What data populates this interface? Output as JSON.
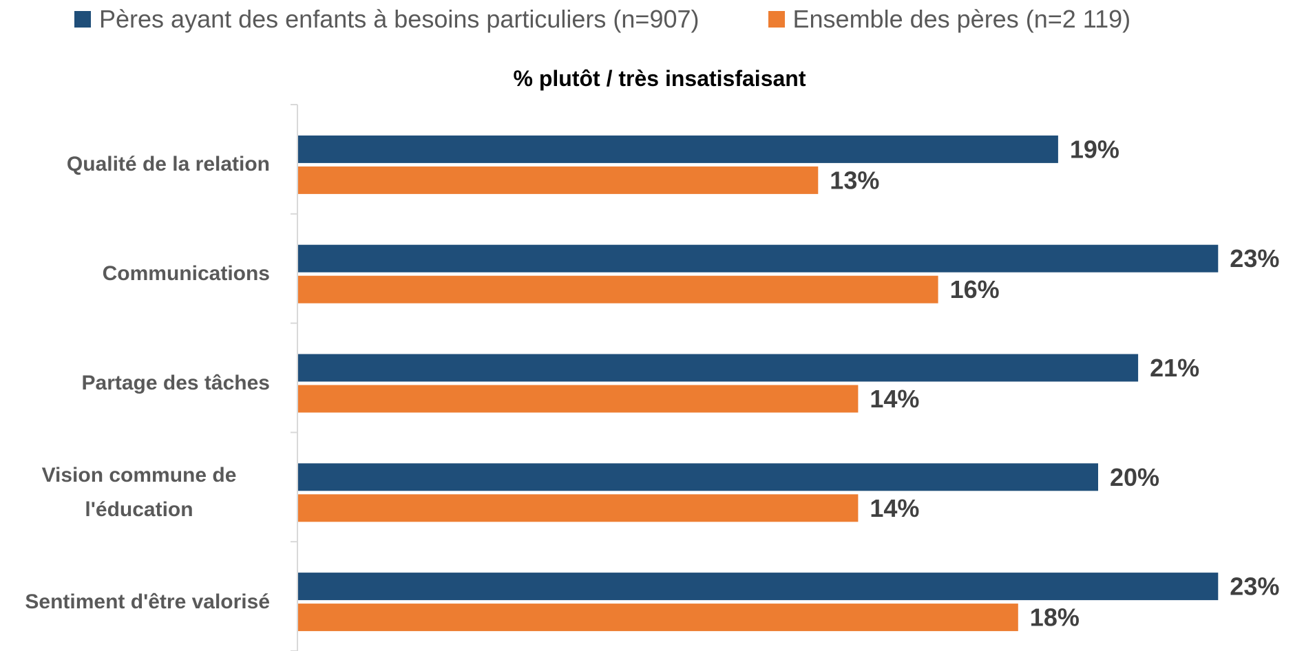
{
  "chart_data": {
    "type": "barh",
    "title": "% plutôt / très insatisfaisant",
    "categories": [
      "Qualité de la relation",
      "Communications",
      "Partage des tâches",
      "Vision commune de l'éducation",
      "Sentiment d'être valorisé"
    ],
    "series": [
      {
        "name": "Pères ayant des enfants à besoins particuliers (n=907)",
        "color": "#1f4e79",
        "values": [
          19,
          23,
          21,
          20,
          23
        ],
        "value_labels": [
          "19%",
          "23%",
          "21%",
          "20%",
          "23%"
        ]
      },
      {
        "name": "Ensemble des pères (n=2 119)",
        "color": "#ed7d31",
        "values": [
          13,
          16,
          14,
          14,
          18
        ],
        "value_labels": [
          "13%",
          "16%",
          "14%",
          "14%",
          "18%"
        ]
      }
    ],
    "legend": "top"
  }
}
